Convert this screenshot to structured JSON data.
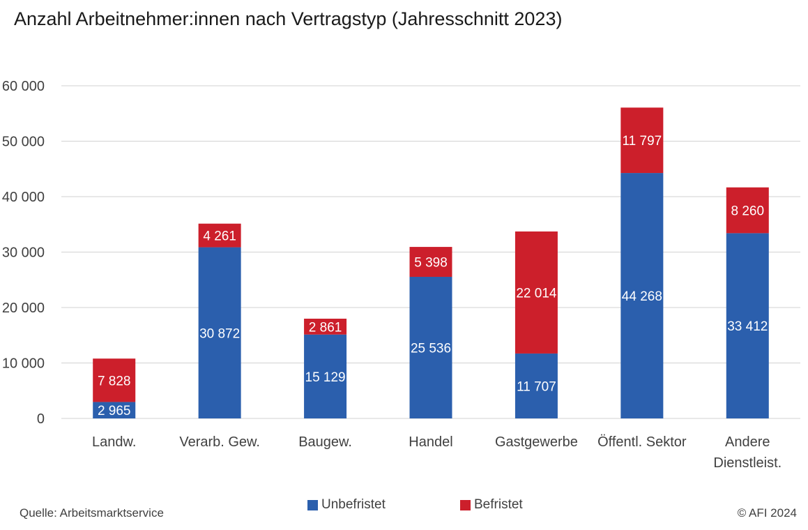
{
  "title": "Anzahl Arbeitnehmer:innen nach Vertragstyp (Jahresschnitt 2023)",
  "source": "Quelle: Arbeitsmarktservice",
  "copyright": "© AFI 2024",
  "colors": {
    "unbefristet": "#2b5fad",
    "befristet": "#cc1f2b",
    "grid": "#d9d9d9",
    "axis_text": "#404040"
  },
  "chart_data": {
    "type": "bar",
    "stacked": true,
    "categories": [
      [
        "Landw."
      ],
      [
        "Verarb. Gew."
      ],
      [
        "Baugew."
      ],
      [
        "Handel"
      ],
      [
        "Gastgewerbe"
      ],
      [
        "Öffentl. Sektor"
      ],
      [
        "Andere",
        "Dienstleist."
      ]
    ],
    "series": [
      {
        "name": "Unbefristet",
        "color": "#2b5fad",
        "values": [
          2965,
          30872,
          15129,
          25536,
          11707,
          44268,
          33412
        ],
        "labels": [
          "2 965",
          "30 872",
          "15 129",
          "25 536",
          "11 707",
          "44 268",
          "33 412"
        ]
      },
      {
        "name": "Befristet",
        "color": "#cc1f2b",
        "values": [
          7828,
          4261,
          2861,
          5398,
          22014,
          11797,
          8260
        ],
        "labels": [
          "7 828",
          "4 261",
          "2 861",
          "5 398",
          "22 014",
          "11 797",
          "8 260"
        ]
      }
    ],
    "ylim": [
      0,
      60000
    ],
    "yticks": [
      0,
      10000,
      20000,
      30000,
      40000,
      50000,
      60000
    ],
    "ytick_labels": [
      "0",
      "10 000",
      "20 000",
      "30 000",
      "40 000",
      "50 000",
      "60 000"
    ],
    "grid": true,
    "legend": "bottom"
  }
}
